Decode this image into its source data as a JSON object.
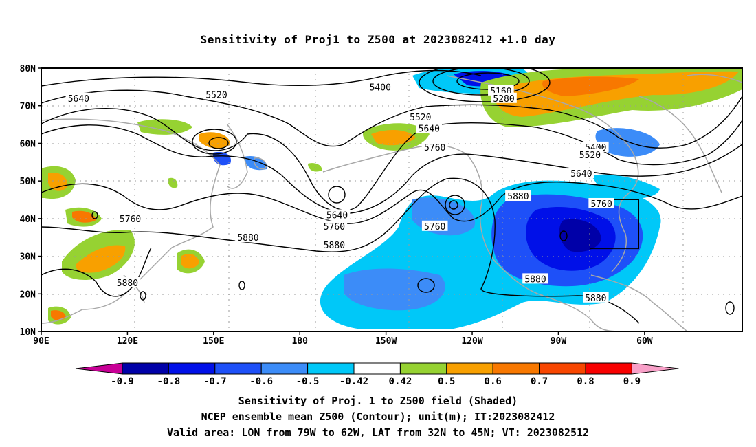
{
  "title": "Sensitivity of Proj1 to Z500 at 2023082412 +1.0 day",
  "map": {
    "lat_labels": [
      "80N",
      "70N",
      "60N",
      "50N",
      "40N",
      "30N",
      "20N",
      "10N"
    ],
    "lon_labels": [
      "90E",
      "120E",
      "150E",
      "180",
      "150W",
      "120W",
      "90W",
      "60W"
    ],
    "lat_range": [
      10,
      80
    ],
    "grid": "dotted",
    "contour_labels": [
      {
        "text": "5640",
        "lon": 103,
        "lat": 72
      },
      {
        "text": "5520",
        "lon": 151,
        "lat": 73
      },
      {
        "text": "5400",
        "lon": 208,
        "lat": 75
      },
      {
        "text": "5160",
        "lon": 250,
        "lat": 74
      },
      {
        "text": "5280",
        "lon": 251,
        "lat": 72
      },
      {
        "text": "5520",
        "lon": 222,
        "lat": 67
      },
      {
        "text": "5640",
        "lon": 225,
        "lat": 64
      },
      {
        "text": "5760",
        "lon": 227,
        "lat": 59
      },
      {
        "text": "5400",
        "lon": 283,
        "lat": 59
      },
      {
        "text": "5520",
        "lon": 281,
        "lat": 57
      },
      {
        "text": "5640",
        "lon": 278,
        "lat": 52
      },
      {
        "text": "5760",
        "lon": 285,
        "lat": 44
      },
      {
        "text": "5880",
        "lon": 256,
        "lat": 46
      },
      {
        "text": "5640",
        "lon": 193,
        "lat": 41
      },
      {
        "text": "5760",
        "lon": 192,
        "lat": 38
      },
      {
        "text": "5760",
        "lon": 227,
        "lat": 38
      },
      {
        "text": "5760",
        "lon": 121,
        "lat": 40
      },
      {
        "text": "5880",
        "lon": 162,
        "lat": 35
      },
      {
        "text": "5880",
        "lon": 192,
        "lat": 33
      },
      {
        "text": "5880",
        "lon": 262,
        "lat": 24
      },
      {
        "text": "5880",
        "lon": 283,
        "lat": 19
      },
      {
        "text": "5880",
        "lon": 120,
        "lat": 23
      }
    ],
    "valid_box": {
      "lon_w": 79,
      "lon_e": 62,
      "lat_s": 32,
      "lat_n": 45
    }
  },
  "colorbar": {
    "labels": [
      "-0.9",
      "-0.8",
      "-0.7",
      "-0.6",
      "-0.5",
      "-0.42",
      "0.42",
      "0.5",
      "0.6",
      "0.7",
      "0.8",
      "0.9"
    ],
    "colors": [
      "#0000a8",
      "#0010e8",
      "#1e50f8",
      "#3c8cf8",
      "#00c8f8",
      "#ffffff",
      "#96d232",
      "#f8a000",
      "#f87800",
      "#f84600",
      "#f80000"
    ],
    "end_low": "#c80096",
    "end_high": "#f8a0c8"
  },
  "footer": {
    "line1": "Sensitivity of Proj. 1 to Z500 field (Shaded)",
    "line2": "NCEP ensemble mean Z500 (Contour); unit(m); IT:2023082412",
    "line3": "Valid area: LON from 79W to 62W, LAT from 32N to 45N; VT: 2023082512"
  }
}
